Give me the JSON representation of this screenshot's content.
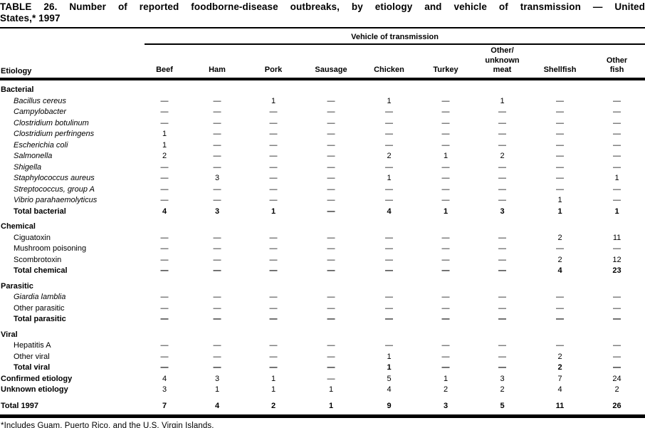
{
  "title": {
    "line1": "TABLE 26. Number of reported foodborne-disease outbreaks, by etiology and vehicle of transmission — United",
    "line2": "States,* 1997"
  },
  "table": {
    "group_header": "Vehicle of transmission",
    "etiology_header": "Etiology",
    "columns": [
      "Beef",
      "Ham",
      "Pork",
      "Sausage",
      "Chicken",
      "Turkey",
      "Other/\nunknown\nmeat",
      "Shellfish",
      "Other\nfish"
    ],
    "rows": [
      {
        "label": "Bacterial",
        "style": "section",
        "values": []
      },
      {
        "label": "Bacillus cereus",
        "style": "species",
        "values": [
          "—",
          "—",
          "1",
          "—",
          "1",
          "—",
          "1",
          "—",
          "—"
        ]
      },
      {
        "label": "Campylobacter",
        "style": "species",
        "values": [
          "—",
          "—",
          "—",
          "—",
          "—",
          "—",
          "—",
          "—",
          "—"
        ]
      },
      {
        "label": "Clostridium botulinum",
        "style": "species",
        "values": [
          "—",
          "—",
          "—",
          "—",
          "—",
          "—",
          "—",
          "—",
          "—"
        ]
      },
      {
        "label": "Clostridium perfringens",
        "style": "species",
        "values": [
          "1",
          "—",
          "—",
          "—",
          "—",
          "—",
          "—",
          "—",
          "—"
        ]
      },
      {
        "label": "Escherichia coli",
        "style": "species",
        "values": [
          "1",
          "—",
          "—",
          "—",
          "—",
          "—",
          "—",
          "—",
          "—"
        ]
      },
      {
        "label": "Salmonella",
        "style": "species",
        "values": [
          "2",
          "—",
          "—",
          "—",
          "2",
          "1",
          "2",
          "—",
          "—"
        ]
      },
      {
        "label": "Shigella",
        "style": "species",
        "values": [
          "—",
          "—",
          "—",
          "—",
          "—",
          "—",
          "—",
          "—",
          "—"
        ]
      },
      {
        "label": "Staphylococcus aureus",
        "style": "species",
        "values": [
          "—",
          "3",
          "—",
          "—",
          "1",
          "—",
          "—",
          "—",
          "1"
        ]
      },
      {
        "label": "Streptococcus, group A",
        "style": "species",
        "values": [
          "—",
          "—",
          "—",
          "—",
          "—",
          "—",
          "—",
          "—",
          "—"
        ]
      },
      {
        "label": "Vibrio parahaemolyticus",
        "style": "species",
        "values": [
          "—",
          "—",
          "—",
          "—",
          "—",
          "—",
          "—",
          "1",
          "—"
        ]
      },
      {
        "label": "Total bacterial",
        "style": "total",
        "values": [
          "4",
          "3",
          "1",
          "—",
          "4",
          "1",
          "3",
          "1",
          "1"
        ]
      },
      {
        "label": "Chemical",
        "style": "section",
        "values": []
      },
      {
        "label": "Ciguatoxin",
        "style": "item",
        "values": [
          "—",
          "—",
          "—",
          "—",
          "—",
          "—",
          "—",
          "2",
          "11"
        ]
      },
      {
        "label": "Mushroom poisoning",
        "style": "item",
        "values": [
          "—",
          "—",
          "—",
          "—",
          "—",
          "—",
          "—",
          "—",
          "—"
        ]
      },
      {
        "label": "Scombrotoxin",
        "style": "item",
        "values": [
          "—",
          "—",
          "—",
          "—",
          "—",
          "—",
          "—",
          "2",
          "12"
        ]
      },
      {
        "label": "Total chemical",
        "style": "total",
        "values": [
          "—",
          "—",
          "—",
          "—",
          "—",
          "—",
          "—",
          "4",
          "23"
        ]
      },
      {
        "label": "Parasitic",
        "style": "section",
        "values": []
      },
      {
        "label": "Giardia lamblia",
        "style": "species",
        "values": [
          "—",
          "—",
          "—",
          "—",
          "—",
          "—",
          "—",
          "—",
          "—"
        ]
      },
      {
        "label": "Other parasitic",
        "style": "item",
        "values": [
          "—",
          "—",
          "—",
          "—",
          "—",
          "—",
          "—",
          "—",
          "—"
        ]
      },
      {
        "label": "Total parasitic",
        "style": "total",
        "values": [
          "—",
          "—",
          "—",
          "—",
          "—",
          "—",
          "—",
          "—",
          "—"
        ]
      },
      {
        "label": "Viral",
        "style": "section",
        "values": []
      },
      {
        "label": "Hepatitis A",
        "style": "item",
        "values": [
          "—",
          "—",
          "—",
          "—",
          "—",
          "—",
          "—",
          "—",
          "—"
        ]
      },
      {
        "label": "Other viral",
        "style": "item",
        "values": [
          "—",
          "—",
          "—",
          "—",
          "1",
          "—",
          "—",
          "2",
          "—"
        ]
      },
      {
        "label": "Total viral",
        "style": "total",
        "values": [
          "—",
          "—",
          "—",
          "—",
          "1",
          "—",
          "—",
          "2",
          "—"
        ]
      },
      {
        "label": "Confirmed etiology",
        "style": "summary",
        "values": [
          "4",
          "3",
          "1",
          "—",
          "5",
          "1",
          "3",
          "7",
          "24"
        ]
      },
      {
        "label": "Unknown etiology",
        "style": "summary",
        "values": [
          "3",
          "1",
          "1",
          "1",
          "4",
          "2",
          "2",
          "4",
          "2"
        ]
      },
      {
        "label": "Total 1997",
        "style": "grandtotal",
        "values": [
          "7",
          "4",
          "2",
          "1",
          "9",
          "3",
          "5",
          "11",
          "26"
        ]
      }
    ]
  },
  "footnote": "*Includes Guam, Puerto Rico, and the U.S. Virgin Islands."
}
